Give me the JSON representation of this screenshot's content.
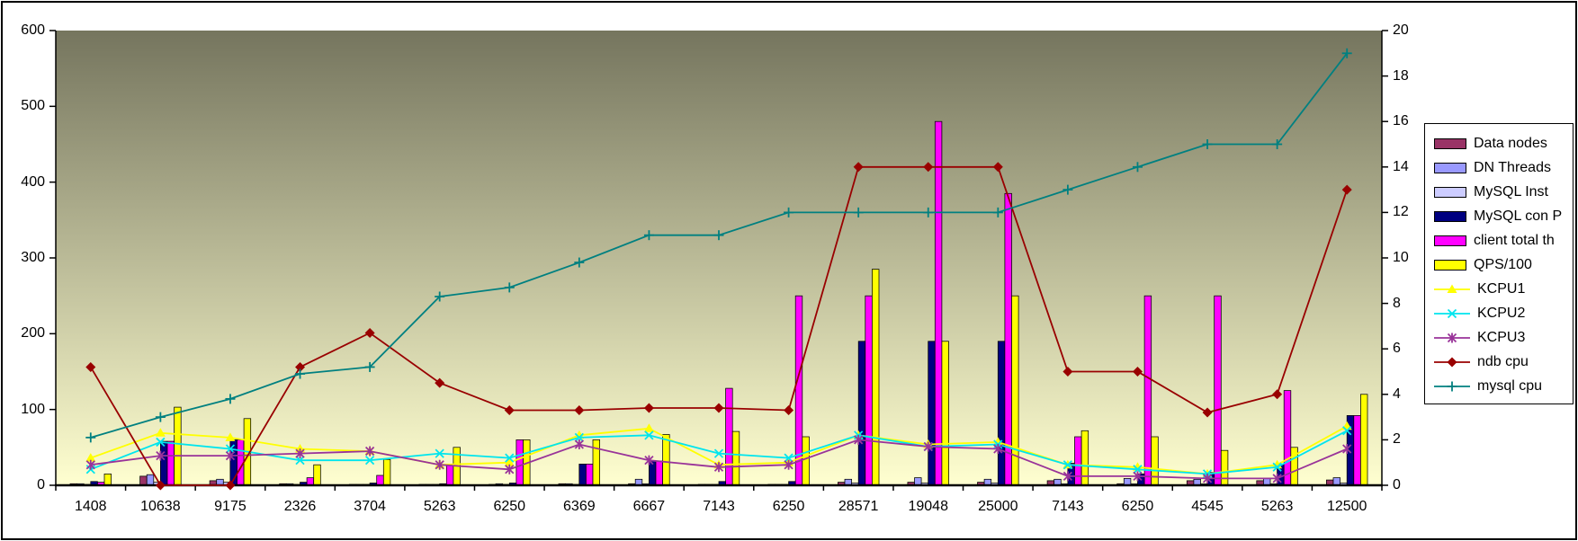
{
  "chart_data": {
    "type": "bar+line combo, dual axis",
    "title": "",
    "categories": [
      "1408",
      "10638",
      "9175",
      "2326",
      "3704",
      "5263",
      "6250",
      "6369",
      "6667",
      "7143",
      "6250",
      "28571",
      "19048",
      "25000",
      "7143",
      "6250",
      "4545",
      "5263",
      "12500"
    ],
    "left_axis": {
      "min": 0,
      "max": 600,
      "step": 100,
      "tick_labels": [
        "0",
        "100",
        "200",
        "300",
        "400",
        "500",
        "600"
      ]
    },
    "right_axis": {
      "min": 0,
      "max": 20,
      "step": 2,
      "tick_labels": [
        "0",
        "2",
        "4",
        "6",
        "8",
        "10",
        "12",
        "14",
        "16",
        "18",
        "20"
      ]
    },
    "grid": "off",
    "legend_position": "right",
    "plot_background": {
      "gradient_top": "#75755E",
      "gradient_bottom": "#FFFFD0"
    },
    "bar_series": [
      {
        "name": "Data nodes",
        "color": "#993366",
        "axis": "left",
        "values": [
          2,
          12,
          6,
          2,
          1,
          1,
          1,
          2,
          2,
          1,
          1,
          4,
          4,
          4,
          6,
          2,
          6,
          6,
          7
        ]
      },
      {
        "name": "DN Threads",
        "color": "#9999FF",
        "axis": "left",
        "values": [
          2,
          14,
          8,
          2,
          1,
          1,
          2,
          2,
          8,
          1,
          1,
          8,
          10,
          8,
          8,
          9,
          8,
          9,
          10
        ]
      },
      {
        "name": "MySQL Inst",
        "color": "#CCCCFF",
        "axis": "left",
        "values": [
          1,
          4,
          4,
          1,
          1,
          1,
          1,
          1,
          2,
          1,
          1,
          3,
          3,
          3,
          2,
          2,
          2,
          2,
          3
        ]
      },
      {
        "name": "MySQL con P",
        "color": "#000080",
        "axis": "left",
        "values": [
          5,
          58,
          60,
          4,
          3,
          2,
          3,
          28,
          32,
          5,
          5,
          190,
          190,
          190,
          29,
          15,
          17,
          28,
          92
        ]
      },
      {
        "name": "client total th",
        "color": "#FF00FF",
        "axis": "left",
        "values": [
          4,
          58,
          60,
          10,
          13,
          28,
          60,
          28,
          32,
          128,
          250,
          250,
          480,
          385,
          64,
          250,
          250,
          125,
          92
        ]
      },
      {
        "name": "QPS/100",
        "color": "#FFFF00",
        "axis": "left",
        "values": [
          15,
          103,
          88,
          27,
          34,
          50,
          60,
          60,
          67,
          71,
          64,
          285,
          190,
          250,
          72,
          64,
          46,
          50,
          120
        ]
      }
    ],
    "line_series": [
      {
        "name": "KCPU1",
        "color": "#FFFF00",
        "marker": "triangle",
        "axis": "right",
        "values": [
          1.2,
          2.3,
          2.1,
          1.6,
          1.5,
          0.9,
          1.0,
          2.2,
          2.5,
          0.9,
          1.0,
          2.2,
          1.8,
          1.9,
          0.9,
          0.8,
          0.5,
          0.9,
          2.6
        ]
      },
      {
        "name": "KCPU2",
        "color": "#00E5EE",
        "marker": "x",
        "axis": "right",
        "values": [
          0.7,
          1.9,
          1.6,
          1.1,
          1.1,
          1.4,
          1.2,
          2.1,
          2.2,
          1.4,
          1.2,
          2.2,
          1.7,
          1.8,
          0.9,
          0.7,
          0.5,
          0.8,
          2.4
        ]
      },
      {
        "name": "KCPU3",
        "color": "#993399",
        "marker": "asterisk",
        "axis": "right",
        "values": [
          0.9,
          1.3,
          1.3,
          1.4,
          1.5,
          0.9,
          0.7,
          1.8,
          1.1,
          0.8,
          0.9,
          2.0,
          1.7,
          1.6,
          0.4,
          0.4,
          0.3,
          0.3,
          1.6
        ]
      },
      {
        "name": "ndb cpu",
        "color": "#990000",
        "marker": "diamond",
        "axis": "right",
        "values": [
          5.2,
          0,
          0,
          5.2,
          6.7,
          4.5,
          3.3,
          3.3,
          3.4,
          3.4,
          3.3,
          14,
          14,
          14,
          5,
          5,
          3.2,
          4,
          13
        ]
      },
      {
        "name": "mysql cpu",
        "color": "#008080",
        "marker": "plus",
        "axis": "right",
        "values": [
          2.1,
          3,
          3.8,
          4.9,
          5.2,
          8.3,
          8.7,
          9.8,
          11,
          11,
          12,
          12,
          12,
          12,
          13,
          14,
          15,
          15,
          19
        ]
      }
    ],
    "legend_items": [
      "Data nodes",
      "DN Threads",
      "MySQL Inst",
      "MySQL con P",
      "client total th",
      "QPS/100",
      "KCPU1",
      "KCPU2",
      "KCPU3",
      "ndb cpu",
      "mysql cpu"
    ]
  }
}
